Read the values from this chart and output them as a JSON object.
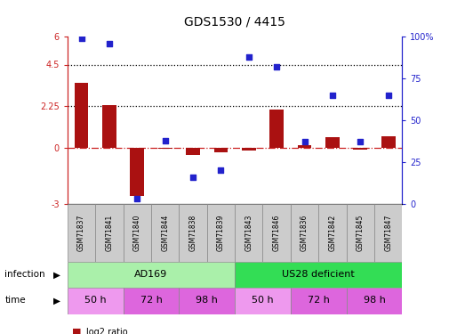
{
  "title": "GDS1530 / 4415",
  "samples": [
    "GSM71837",
    "GSM71841",
    "GSM71840",
    "GSM71844",
    "GSM71838",
    "GSM71839",
    "GSM71843",
    "GSM71846",
    "GSM71836",
    "GSM71842",
    "GSM71845",
    "GSM71847"
  ],
  "log2_ratio": [
    3.5,
    2.3,
    -2.6,
    -0.05,
    -0.35,
    -0.22,
    -0.15,
    2.1,
    0.15,
    0.6,
    -0.08,
    0.65
  ],
  "percentile_rank": [
    99,
    96,
    3,
    38,
    16,
    20,
    88,
    82,
    37,
    65,
    37,
    65
  ],
  "ylim_left": [
    -3,
    6
  ],
  "ylim_right": [
    0,
    100
  ],
  "hlines": [
    4.5,
    2.25
  ],
  "bar_color": "#aa1111",
  "dot_color": "#2222cc",
  "infection_labels": [
    {
      "label": "AD169",
      "start": 0,
      "end": 6,
      "color": "#aaf0aa"
    },
    {
      "label": "US28 deficient",
      "start": 6,
      "end": 12,
      "color": "#33dd55"
    }
  ],
  "time_labels": [
    {
      "label": "50 h",
      "start": 0,
      "end": 2,
      "color": "#ee99ee"
    },
    {
      "label": "72 h",
      "start": 2,
      "end": 4,
      "color": "#dd66dd"
    },
    {
      "label": "98 h",
      "start": 4,
      "end": 6,
      "color": "#dd66dd"
    },
    {
      "label": "50 h",
      "start": 6,
      "end": 8,
      "color": "#ee99ee"
    },
    {
      "label": "72 h",
      "start": 8,
      "end": 10,
      "color": "#dd66dd"
    },
    {
      "label": "98 h",
      "start": 10,
      "end": 12,
      "color": "#dd66dd"
    }
  ],
  "left_yticks": [
    -3,
    0,
    2.25,
    4.5,
    6
  ],
  "right_yticks": [
    0,
    25,
    50,
    75,
    100
  ],
  "left_tick_labels": [
    "-3",
    "0",
    "2.25",
    "4.5",
    "6"
  ],
  "right_tick_labels": [
    "0",
    "25",
    "50",
    "75",
    "100%"
  ]
}
